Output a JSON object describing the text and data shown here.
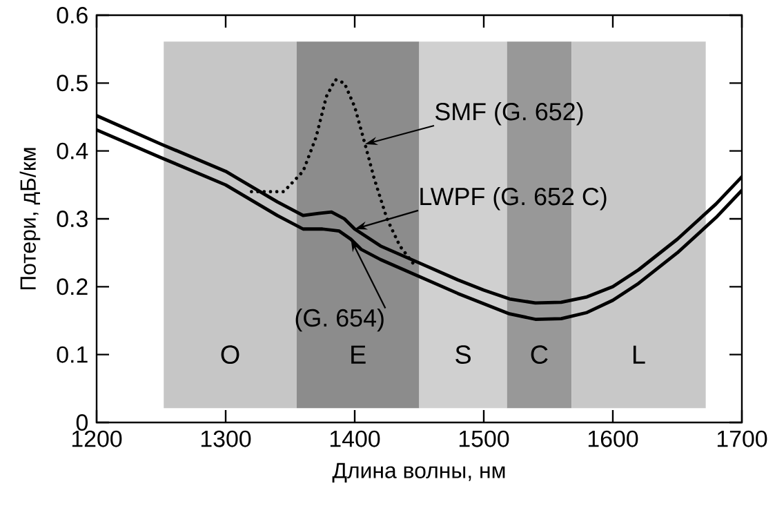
{
  "chart_data": {
    "type": "line",
    "xlabel": "Длина волны, нм",
    "ylabel": "Потери, дБ/км",
    "xlim": [
      1200,
      1700
    ],
    "ylim": [
      0,
      0.6
    ],
    "xticks": [
      1200,
      1300,
      1400,
      1500,
      1600,
      1700
    ],
    "yticks": [
      0,
      0.1,
      0.2,
      0.3,
      0.4,
      0.5,
      0.6
    ],
    "series": [
      {
        "color": "#000000",
        "line_style": "dotted",
        "x": [
          1320,
          1345,
          1360,
          1370,
          1378,
          1385,
          1392,
          1400,
          1408,
          1415,
          1425,
          1435,
          1445
        ],
        "values": [
          0.34,
          0.34,
          0.37,
          0.42,
          0.48,
          0.505,
          0.5,
          0.465,
          0.41,
          0.36,
          0.3,
          0.26,
          0.235
        ]
      },
      {
        "color": "#000000",
        "line_style": "solid",
        "x": [
          1200,
          1250,
          1300,
          1340,
          1360,
          1372,
          1382,
          1392,
          1400,
          1420,
          1450,
          1480,
          1500,
          1520,
          1540,
          1560,
          1580,
          1600,
          1620,
          1650,
          1680,
          1700
        ],
        "values": [
          0.452,
          0.41,
          0.37,
          0.325,
          0.305,
          0.308,
          0.31,
          0.3,
          0.285,
          0.26,
          0.235,
          0.21,
          0.195,
          0.182,
          0.176,
          0.177,
          0.185,
          0.2,
          0.225,
          0.27,
          0.322,
          0.362
        ]
      },
      {
        "color": "#000000",
        "line_style": "solid",
        "x": [
          1200,
          1250,
          1300,
          1340,
          1360,
          1375,
          1388,
          1397,
          1405,
          1420,
          1450,
          1480,
          1500,
          1520,
          1540,
          1560,
          1580,
          1600,
          1620,
          1650,
          1680,
          1700
        ],
        "values": [
          0.431,
          0.39,
          0.35,
          0.305,
          0.285,
          0.285,
          0.282,
          0.27,
          0.255,
          0.24,
          0.215,
          0.19,
          0.175,
          0.16,
          0.152,
          0.153,
          0.162,
          0.18,
          0.205,
          0.25,
          0.302,
          0.342
        ]
      }
    ],
    "bands": [
      {
        "axis": "x",
        "from": 1252,
        "to": 1355,
        "label": "O",
        "color": "#c6c6c6"
      },
      {
        "axis": "x",
        "from": 1355,
        "to": 1450,
        "label": "E",
        "color": "#8c8c8c"
      },
      {
        "axis": "x",
        "from": 1450,
        "to": 1518,
        "label": "S",
        "color": "#d0d0d0"
      },
      {
        "axis": "x",
        "from": 1518,
        "to": 1568,
        "label": "C",
        "color": "#989898"
      },
      {
        "axis": "x",
        "from": 1568,
        "to": 1672,
        "label": "L",
        "color": "#c8c8c8"
      }
    ],
    "annotations": [
      {
        "text": "SMF (G. 652)",
        "x": 1408,
        "y": 0.41
      },
      {
        "text": "LWPF (G. 652 C)",
        "x": 1400,
        "y": 0.285
      },
      {
        "text": "(G. 654)",
        "x": 1397,
        "y": 0.27
      }
    ]
  }
}
